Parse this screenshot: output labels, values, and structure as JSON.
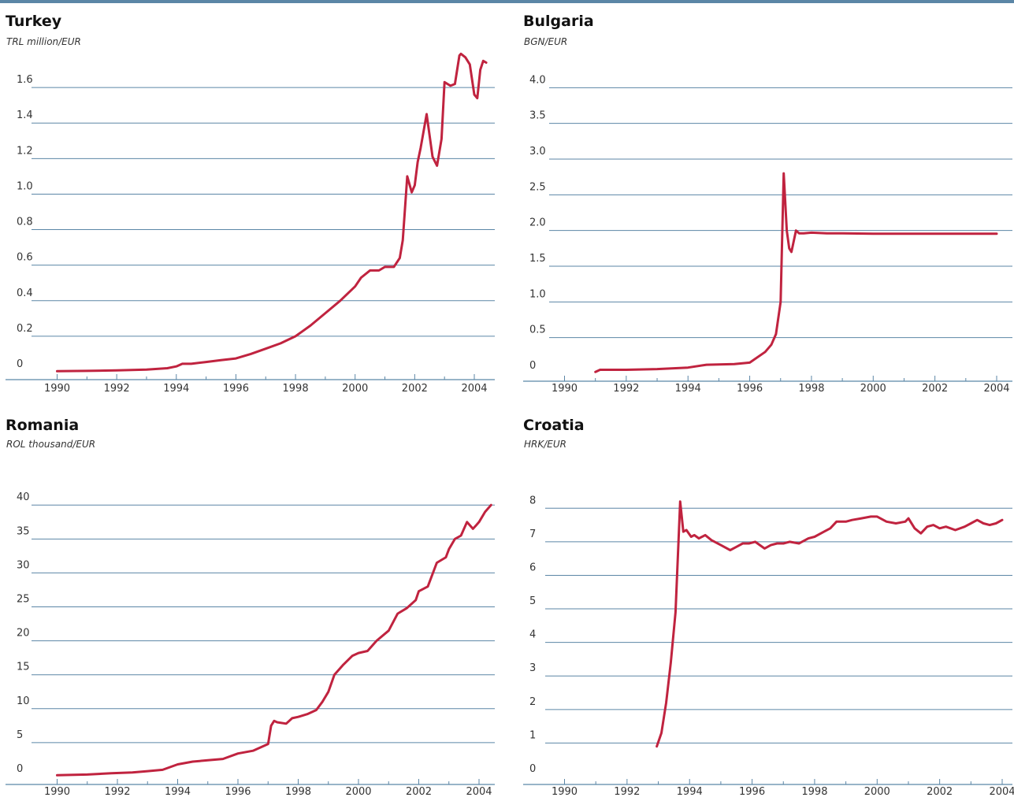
{
  "chart_data": [
    {
      "type": "line",
      "title": "Turkey",
      "ylabel": "TRL million/EUR",
      "xlabel": "",
      "xlim": [
        1989.6,
        2004.6
      ],
      "ylim": [
        0,
        1.8
      ],
      "yticks": [
        0,
        0.2,
        0.4,
        0.6,
        0.8,
        1.0,
        1.2,
        1.4,
        1.6
      ],
      "ytick_labels": [
        "0",
        "0.2",
        "0.4",
        "0.6",
        "0.8",
        "1.0",
        "1.2",
        "1.4",
        "1.6"
      ],
      "xticks": [
        1990,
        1992,
        1994,
        1996,
        1998,
        2000,
        2002,
        2004
      ],
      "xtick_labels": [
        "1990",
        "1992",
        "1994",
        "1996",
        "1998",
        "2000",
        "2002",
        "2004"
      ],
      "color": "#c0233f",
      "x": [
        1990.0,
        1991.0,
        1992.0,
        1993.0,
        1993.7,
        1994.0,
        1994.2,
        1994.5,
        1995.0,
        1995.5,
        1996.0,
        1996.5,
        1997.0,
        1997.5,
        1998.0,
        1998.5,
        1999.0,
        1999.5,
        2000.0,
        2000.2,
        2000.5,
        2000.8,
        2001.0,
        2001.3,
        2001.5,
        2001.6,
        2001.75,
        2001.9,
        2002.0,
        2002.1,
        2002.2,
        2002.4,
        2002.6,
        2002.75,
        2002.9,
        2003.0,
        2003.2,
        2003.35,
        2003.5,
        2003.55,
        2003.7,
        2003.85,
        2004.0,
        2004.1,
        2004.2,
        2004.3,
        2004.4
      ],
      "y": [
        0.003,
        0.005,
        0.008,
        0.012,
        0.02,
        0.03,
        0.045,
        0.045,
        0.055,
        0.065,
        0.075,
        0.1,
        0.13,
        0.16,
        0.2,
        0.26,
        0.33,
        0.4,
        0.48,
        0.53,
        0.57,
        0.57,
        0.59,
        0.59,
        0.64,
        0.74,
        1.1,
        1.01,
        1.05,
        1.18,
        1.26,
        1.45,
        1.21,
        1.16,
        1.31,
        1.63,
        1.61,
        1.62,
        1.78,
        1.79,
        1.77,
        1.73,
        1.56,
        1.54,
        1.7,
        1.75,
        1.74
      ]
    },
    {
      "type": "line",
      "title": "Bulgaria",
      "ylabel": "BGN/EUR",
      "xlabel": "",
      "xlim": [
        1989.6,
        2004.1
      ],
      "ylim": [
        0,
        4.5
      ],
      "yticks": [
        0,
        0.5,
        1.0,
        1.5,
        2.0,
        2.5,
        3.0,
        3.5,
        4.0
      ],
      "ytick_labels": [
        "0",
        "0.5",
        "1.0",
        "1.5",
        "2.0",
        "2.5",
        "3.0",
        "3.5",
        "4.0"
      ],
      "xticks": [
        1990,
        1992,
        1994,
        1996,
        1998,
        2000,
        2002,
        2004
      ],
      "xtick_labels": [
        "1990",
        "1992",
        "1994",
        "1996",
        "1998",
        "2000",
        "2002",
        "2004"
      ],
      "color": "#c0233f",
      "x": [
        1991.0,
        1991.15,
        1992.0,
        1993.0,
        1994.0,
        1994.6,
        1995.5,
        1996.0,
        1996.5,
        1996.7,
        1996.85,
        1997.0,
        1997.1,
        1997.2,
        1997.28,
        1997.35,
        1997.5,
        1997.6,
        1997.75,
        1998.0,
        1998.5,
        1999.0,
        2000.0,
        2001.0,
        2002.0,
        2003.0,
        2003.5,
        2004.0
      ],
      "y": [
        0.02,
        0.05,
        0.05,
        0.06,
        0.08,
        0.12,
        0.13,
        0.15,
        0.3,
        0.4,
        0.55,
        1.0,
        2.8,
        2.0,
        1.75,
        1.7,
        2.0,
        1.96,
        1.96,
        1.97,
        1.96,
        1.96,
        1.956,
        1.956,
        1.956,
        1.956,
        1.956,
        1.956
      ]
    },
    {
      "type": "line",
      "title": "Romania",
      "ylabel": "ROL thousand/EUR",
      "xlabel": "",
      "xlim": [
        1989.6,
        2004.6
      ],
      "ylim": [
        0,
        42
      ],
      "yticks": [
        0,
        5,
        10,
        15,
        20,
        25,
        30,
        35,
        40
      ],
      "ytick_labels": [
        "0",
        "5",
        "10",
        "15",
        "20",
        "25",
        "30",
        "35",
        "40"
      ],
      "xticks": [
        1990,
        1992,
        1994,
        1996,
        1998,
        2000,
        2002,
        2004
      ],
      "xtick_labels": [
        "1990",
        "1992",
        "1994",
        "1996",
        "1998",
        "2000",
        "2002",
        "2004"
      ],
      "color": "#c0233f",
      "x": [
        1990.0,
        1991.0,
        1991.8,
        1992.5,
        1993.0,
        1993.5,
        1994.0,
        1994.5,
        1995.0,
        1995.5,
        1996.0,
        1996.5,
        1997.0,
        1997.1,
        1997.2,
        1997.3,
        1997.6,
        1997.8,
        1998.0,
        1998.3,
        1998.6,
        1998.8,
        1999.0,
        1999.2,
        1999.5,
        1999.8,
        2000.0,
        2000.3,
        2000.6,
        2001.0,
        2001.3,
        2001.6,
        2001.9,
        2002.0,
        2002.3,
        2002.6,
        2002.9,
        2003.0,
        2003.2,
        2003.4,
        2003.6,
        2003.8,
        2003.9,
        2004.0,
        2004.2,
        2004.4
      ],
      "y": [
        0.2,
        0.3,
        0.5,
        0.6,
        0.8,
        1.0,
        1.8,
        2.2,
        2.4,
        2.6,
        3.4,
        3.8,
        4.8,
        7.5,
        8.2,
        8.0,
        7.8,
        8.6,
        8.8,
        9.2,
        9.8,
        11.0,
        12.5,
        15.0,
        16.5,
        17.8,
        18.2,
        18.5,
        20.0,
        21.5,
        24.0,
        24.8,
        26.0,
        27.3,
        28.0,
        31.5,
        32.3,
        33.5,
        35.0,
        35.5,
        37.5,
        36.5,
        37.0,
        37.5,
        39.0,
        40.0
      ]
    },
    {
      "type": "line",
      "title": "Croatia",
      "ylabel": "HRK/EUR",
      "xlabel": "",
      "xlim": [
        1989.6,
        2004.0
      ],
      "ylim": [
        0,
        8.5
      ],
      "yticks": [
        0,
        1,
        2,
        3,
        4,
        5,
        6,
        7,
        8
      ],
      "ytick_labels": [
        "0",
        "1",
        "2",
        "3",
        "4",
        "5",
        "6",
        "7",
        "8"
      ],
      "xticks": [
        1990,
        1992,
        1994,
        1996,
        1998,
        2000,
        2002,
        2004
      ],
      "xtick_labels": [
        "1990",
        "1992",
        "1994",
        "1996",
        "1998",
        "2000",
        "2002",
        "2004"
      ],
      "color": "#c0233f",
      "x": [
        1992.95,
        1993.1,
        1993.25,
        1993.4,
        1993.55,
        1993.7,
        1993.8,
        1993.9,
        1994.05,
        1994.15,
        1994.3,
        1994.5,
        1994.7,
        1995.0,
        1995.3,
        1995.5,
        1995.7,
        1995.9,
        1996.1,
        1996.4,
        1996.6,
        1996.8,
        1997.0,
        1997.2,
        1997.5,
        1997.8,
        1998.0,
        1998.3,
        1998.5,
        1998.7,
        1999.0,
        1999.2,
        1999.5,
        1999.8,
        2000.0,
        2000.3,
        2000.6,
        2000.9,
        2001.0,
        2001.2,
        2001.4,
        2001.6,
        2001.8,
        2002.0,
        2002.2,
        2002.5,
        2002.8,
        2003.0,
        2003.2,
        2003.4,
        2003.6,
        2003.8,
        2004.0
      ],
      "y": [
        0.9,
        1.3,
        2.2,
        3.4,
        4.9,
        8.2,
        7.3,
        7.35,
        7.15,
        7.2,
        7.1,
        7.2,
        7.05,
        6.9,
        6.75,
        6.85,
        6.95,
        6.95,
        7.0,
        6.8,
        6.9,
        6.95,
        6.95,
        7.0,
        6.95,
        7.1,
        7.15,
        7.3,
        7.4,
        7.6,
        7.6,
        7.65,
        7.7,
        7.75,
        7.75,
        7.6,
        7.55,
        7.6,
        7.7,
        7.4,
        7.25,
        7.45,
        7.5,
        7.4,
        7.45,
        7.35,
        7.45,
        7.55,
        7.65,
        7.55,
        7.5,
        7.55,
        7.65
      ]
    }
  ]
}
